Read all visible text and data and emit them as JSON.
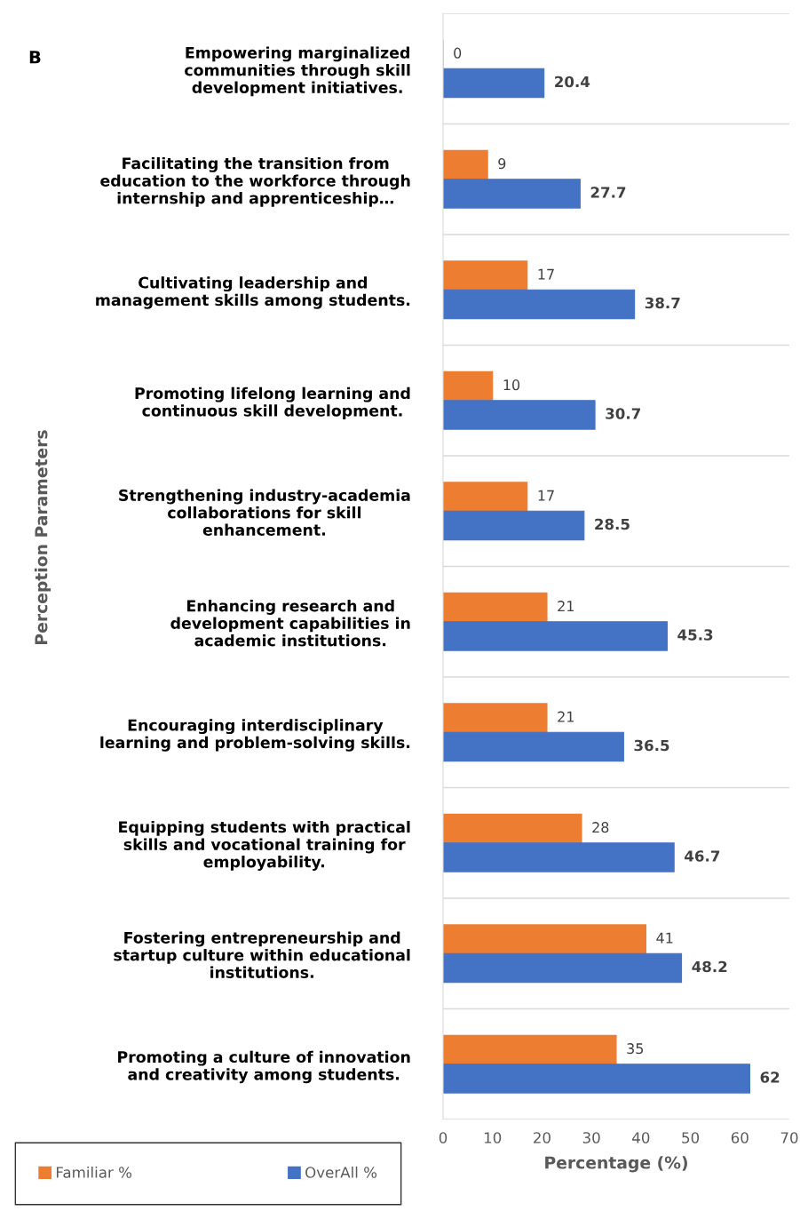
{
  "chart_data": {
    "type": "bar",
    "orientation": "horizontal",
    "categories": [
      "Empowering marginalized\ncommunities through skill\ndevelopment initiatives.",
      "Facilitating the transition from\neducation to the workforce through\ninternship and apprenticeship…",
      "Cultivating leadership and\nmanagement skills among students.",
      "Promoting lifelong learning and\ncontinuous skill development.",
      "Strengthening industry-academia\ncollaborations for skill\nenhancement.",
      "Enhancing research and\ndevelopment capabilities in\nacademic institutions.",
      "Encouraging interdisciplinary\nlearning and problem-solving skills.",
      "Equipping students with practical\nskills and vocational training for\nemployability.",
      "Fostering entrepreneurship and\nstartup culture within educational\ninstitutions.",
      "Promoting a culture of innovation\nand creativity among students."
    ],
    "series": [
      {
        "name": "Familiar %",
        "color": "#ed7d31",
        "values": [
          0,
          9,
          17,
          10,
          17,
          21,
          21,
          28,
          41,
          35
        ]
      },
      {
        "name": "OverAll %",
        "color": "#4472c4",
        "values": [
          20.4,
          27.7,
          38.7,
          30.7,
          28.5,
          45.3,
          36.5,
          46.7,
          48.2,
          62
        ]
      }
    ],
    "xlim": [
      0,
      70
    ],
    "xticks": [
      0,
      10,
      20,
      30,
      40,
      50,
      60,
      70
    ],
    "xlabel": "Percentage (%)",
    "ylabel": "Perception Parameters",
    "annotations": [
      "B"
    ],
    "data_labels": true,
    "grid": "y",
    "legend": "bottom left"
  }
}
